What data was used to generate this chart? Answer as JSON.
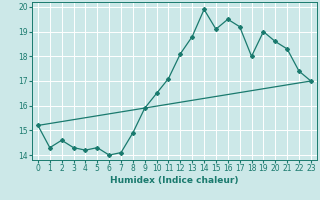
{
  "xlabel": "Humidex (Indice chaleur)",
  "ylabel": "",
  "background_color": "#cce8e8",
  "line_color": "#1a7a6e",
  "grid_color": "#ffffff",
  "xlim": [
    -0.5,
    23.5
  ],
  "ylim": [
    13.8,
    20.2
  ],
  "yticks": [
    14,
    15,
    16,
    17,
    18,
    19,
    20
  ],
  "xticks": [
    0,
    1,
    2,
    3,
    4,
    5,
    6,
    7,
    8,
    9,
    10,
    11,
    12,
    13,
    14,
    15,
    16,
    17,
    18,
    19,
    20,
    21,
    22,
    23
  ],
  "series1_x": [
    0,
    1,
    2,
    3,
    4,
    5,
    6,
    7,
    8,
    9,
    10,
    11,
    12,
    13,
    14,
    15,
    16,
    17,
    18,
    19,
    20,
    21,
    22,
    23
  ],
  "series1_y": [
    15.2,
    14.3,
    14.6,
    14.3,
    14.2,
    14.3,
    14.0,
    14.1,
    14.9,
    15.9,
    16.5,
    17.1,
    18.1,
    18.8,
    19.9,
    19.1,
    19.5,
    19.2,
    18.0,
    19.0,
    18.6,
    18.3,
    17.4,
    17.0
  ],
  "series2_x": [
    0,
    23
  ],
  "series2_y": [
    15.2,
    17.0
  ],
  "tick_fontsize": 5.5,
  "xlabel_fontsize": 6.5
}
